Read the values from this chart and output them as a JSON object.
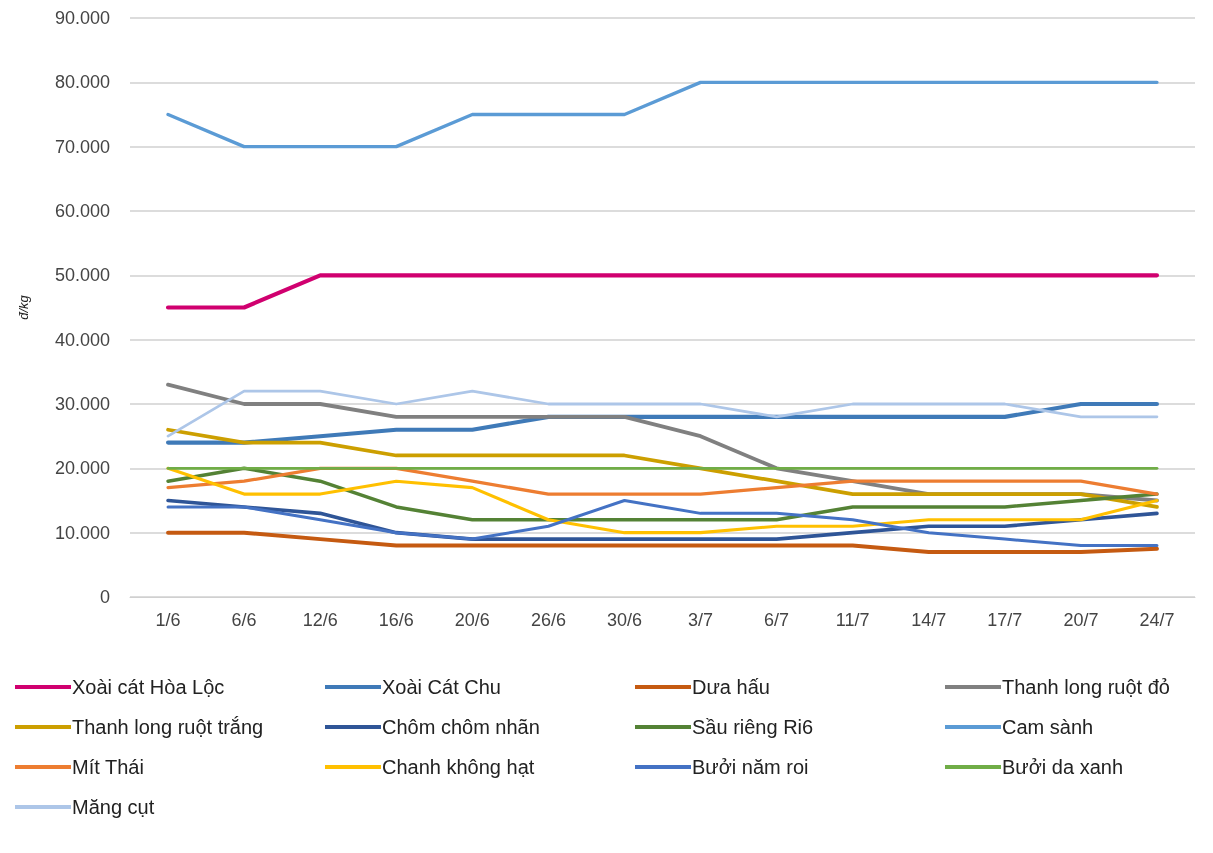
{
  "chart_data": {
    "type": "line",
    "ylabel": "đ/kg",
    "categories": [
      "1/6",
      "6/6",
      "12/6",
      "16/6",
      "20/6",
      "26/6",
      "30/6",
      "3/7",
      "6/7",
      "11/7",
      "14/7",
      "17/7",
      "20/7",
      "24/7"
    ],
    "ylim": [
      0,
      90000
    ],
    "yticks": [
      {
        "value": 0,
        "label": "0"
      },
      {
        "value": 10000,
        "label": "10.000"
      },
      {
        "value": 20000,
        "label": "20.000"
      },
      {
        "value": 30000,
        "label": "30.000"
      },
      {
        "value": 40000,
        "label": "40.000"
      },
      {
        "value": 50000,
        "label": "50.000"
      },
      {
        "value": 60000,
        "label": "60.000"
      },
      {
        "value": 70000,
        "label": "70.000"
      },
      {
        "value": 80000,
        "label": "80.000"
      },
      {
        "value": 90000,
        "label": "90.000"
      }
    ],
    "grid": "y",
    "legend": "bottom",
    "marker": "none",
    "line_style": "solid",
    "series": [
      {
        "name": "Xoài cát Hòa Lộc",
        "color": "#d0006f",
        "values": [
          45000,
          45000,
          50000,
          50000,
          50000,
          50000,
          50000,
          50000,
          50000,
          50000,
          50000,
          50000,
          50000,
          50000
        ]
      },
      {
        "name": "Xoài Cát Chu",
        "color": "#3f7ab8",
        "values": [
          24000,
          24000,
          25000,
          26000,
          26000,
          28000,
          28000,
          28000,
          28000,
          28000,
          28000,
          28000,
          30000,
          30000
        ]
      },
      {
        "name": "Dưa hấu",
        "color": "#c55a11",
        "values": [
          10000,
          10000,
          9000,
          8000,
          8000,
          8000,
          8000,
          8000,
          8000,
          8000,
          7000,
          7000,
          7000,
          7500
        ]
      },
      {
        "name": "Thanh long ruột đỏ",
        "color": "#808080",
        "values": [
          33000,
          30000,
          30000,
          28000,
          28000,
          28000,
          28000,
          25000,
          20000,
          18000,
          16000,
          16000,
          16000,
          15000
        ]
      },
      {
        "name": "Thanh long ruột trắng",
        "color": "#cc9f00",
        "values": [
          26000,
          24000,
          24000,
          22000,
          22000,
          22000,
          22000,
          20000,
          18000,
          16000,
          16000,
          16000,
          16000,
          14000
        ]
      },
      {
        "name": "Chôm chôm nhãn",
        "color": "#2f5597",
        "values": [
          15000,
          14000,
          13000,
          10000,
          9000,
          9000,
          9000,
          9000,
          9000,
          10000,
          11000,
          11000,
          12000,
          13000
        ]
      },
      {
        "name": "Sầu riêng Ri6",
        "color": "#548235",
        "values": [
          18000,
          20000,
          18000,
          14000,
          12000,
          12000,
          12000,
          12000,
          12000,
          14000,
          14000,
          14000,
          15000,
          16000
        ]
      },
      {
        "name": "Cam sành",
        "color": "#5b9bd5",
        "values": [
          75000,
          70000,
          70000,
          70000,
          75000,
          75000,
          75000,
          80000,
          80000,
          80000,
          80000,
          80000,
          80000,
          80000
        ]
      },
      {
        "name": "Mít Thái",
        "color": "#ed7d31",
        "values": [
          17000,
          18000,
          20000,
          20000,
          18000,
          16000,
          16000,
          16000,
          17000,
          18000,
          18000,
          18000,
          18000,
          16000
        ]
      },
      {
        "name": "Chanh không hạt",
        "color": "#ffc000",
        "values": [
          20000,
          16000,
          16000,
          18000,
          17000,
          12000,
          10000,
          10000,
          11000,
          11000,
          12000,
          12000,
          12000,
          15000
        ]
      },
      {
        "name": "Bưởi năm roi",
        "color": "#4472c4",
        "values": [
          14000,
          14000,
          12000,
          10000,
          9000,
          11000,
          15000,
          13000,
          13000,
          12000,
          10000,
          9000,
          8000,
          8000
        ]
      },
      {
        "name": "Bưởi da xanh",
        "color": "#70ad47",
        "values": [
          20000,
          20000,
          20000,
          20000,
          20000,
          20000,
          20000,
          20000,
          20000,
          20000,
          20000,
          20000,
          20000,
          20000
        ]
      },
      {
        "name": "Măng cụt",
        "color": "#adc6e8",
        "values": [
          25000,
          32000,
          32000,
          30000,
          32000,
          30000,
          30000,
          30000,
          28000,
          30000,
          30000,
          30000,
          28000,
          28000
        ]
      }
    ]
  }
}
